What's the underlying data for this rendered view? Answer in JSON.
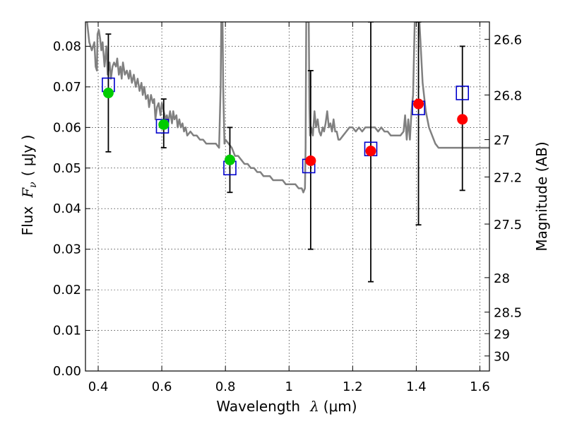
{
  "chart_data": {
    "type": "scatter",
    "xlabel": "Wavelength",
    "xlabel_symbol": "λ",
    "xlabel_unit": "(μm)",
    "ylabel": "Flux",
    "ylabel_symbol": "F",
    "ylabel_sub": "ν",
    "ylabel_unit": "( μJy )",
    "ylabel_right": "Magnitude (AB)",
    "xlim": [
      0.36,
      1.63
    ],
    "ylim": [
      0.0,
      0.086
    ],
    "grid": true,
    "x_ticks": [
      {
        "value": 0.4,
        "label": "0.4"
      },
      {
        "value": 0.6,
        "label": "0.6"
      },
      {
        "value": 0.8,
        "label": "0.8"
      },
      {
        "value": 1.0,
        "label": "1"
      },
      {
        "value": 1.2,
        "label": "1.2"
      },
      {
        "value": 1.4,
        "label": "1.4"
      },
      {
        "value": 1.6,
        "label": "1.6"
      }
    ],
    "y_ticks": [
      {
        "value": 0.0,
        "label": "0.00"
      },
      {
        "value": 0.01,
        "label": "0.01"
      },
      {
        "value": 0.02,
        "label": "0.02"
      },
      {
        "value": 0.03,
        "label": "0.03"
      },
      {
        "value": 0.04,
        "label": "0.04"
      },
      {
        "value": 0.05,
        "label": "0.05"
      },
      {
        "value": 0.06,
        "label": "0.06"
      },
      {
        "value": 0.07,
        "label": "0.07"
      },
      {
        "value": 0.08,
        "label": "0.08"
      }
    ],
    "right_ticks": [
      {
        "flux": 0.0817,
        "label": "26.6"
      },
      {
        "flux": 0.068,
        "label": "26.8"
      },
      {
        "flux": 0.057,
        "label": "27"
      },
      {
        "flux": 0.0478,
        "label": "27.2"
      },
      {
        "flux": 0.0362,
        "label": "27.5"
      },
      {
        "flux": 0.023,
        "label": "28"
      },
      {
        "flux": 0.0145,
        "label": "28.5"
      },
      {
        "flux": 0.0092,
        "label": "29"
      },
      {
        "flux": 0.0037,
        "label": "30"
      }
    ],
    "spectrum": {
      "color": "#808080",
      "points": [
        [
          0.365,
          0.086
        ],
        [
          0.372,
          0.081
        ],
        [
          0.38,
          0.079
        ],
        [
          0.388,
          0.081
        ],
        [
          0.392,
          0.075
        ],
        [
          0.396,
          0.074
        ],
        [
          0.398,
          0.083
        ],
        [
          0.402,
          0.084
        ],
        [
          0.406,
          0.082
        ],
        [
          0.41,
          0.079
        ],
        [
          0.414,
          0.081
        ],
        [
          0.42,
          0.075
        ],
        [
          0.426,
          0.08
        ],
        [
          0.43,
          0.073
        ],
        [
          0.436,
          0.076
        ],
        [
          0.44,
          0.072
        ],
        [
          0.445,
          0.075
        ],
        [
          0.45,
          0.076
        ],
        [
          0.456,
          0.075
        ],
        [
          0.46,
          0.077
        ],
        [
          0.465,
          0.073
        ],
        [
          0.47,
          0.075
        ],
        [
          0.474,
          0.072
        ],
        [
          0.478,
          0.076
        ],
        [
          0.484,
          0.073
        ],
        [
          0.49,
          0.074
        ],
        [
          0.496,
          0.072
        ],
        [
          0.5,
          0.074
        ],
        [
          0.506,
          0.071
        ],
        [
          0.512,
          0.073
        ],
        [
          0.518,
          0.07
        ],
        [
          0.524,
          0.072
        ],
        [
          0.53,
          0.069
        ],
        [
          0.536,
          0.071
        ],
        [
          0.54,
          0.068
        ],
        [
          0.545,
          0.07
        ],
        [
          0.55,
          0.067
        ],
        [
          0.556,
          0.068
        ],
        [
          0.56,
          0.065
        ],
        [
          0.566,
          0.068
        ],
        [
          0.572,
          0.066
        ],
        [
          0.576,
          0.067
        ],
        [
          0.58,
          0.062
        ],
        [
          0.585,
          0.065
        ],
        [
          0.59,
          0.066
        ],
        [
          0.596,
          0.063
        ],
        [
          0.6,
          0.066
        ],
        [
          0.606,
          0.064
        ],
        [
          0.612,
          0.062
        ],
        [
          0.616,
          0.063
        ],
        [
          0.62,
          0.061
        ],
        [
          0.626,
          0.064
        ],
        [
          0.632,
          0.061
        ],
        [
          0.636,
          0.064
        ],
        [
          0.64,
          0.062
        ],
        [
          0.646,
          0.063
        ],
        [
          0.65,
          0.06
        ],
        [
          0.655,
          0.062
        ],
        [
          0.66,
          0.06
        ],
        [
          0.665,
          0.061
        ],
        [
          0.67,
          0.059
        ],
        [
          0.675,
          0.06
        ],
        [
          0.68,
          0.058
        ],
        [
          0.69,
          0.059
        ],
        [
          0.7,
          0.058
        ],
        [
          0.71,
          0.058
        ],
        [
          0.72,
          0.057
        ],
        [
          0.73,
          0.057
        ],
        [
          0.74,
          0.056
        ],
        [
          0.75,
          0.056
        ],
        [
          0.76,
          0.056
        ],
        [
          0.77,
          0.056
        ],
        [
          0.78,
          0.055
        ],
        [
          0.785,
          0.07
        ],
        [
          0.787,
          0.086
        ],
        [
          0.791,
          0.086
        ],
        [
          0.793,
          0.07
        ],
        [
          0.797,
          0.056
        ],
        [
          0.8,
          0.057
        ],
        [
          0.81,
          0.056
        ],
        [
          0.82,
          0.055
        ],
        [
          0.83,
          0.053
        ],
        [
          0.84,
          0.053
        ],
        [
          0.85,
          0.052
        ],
        [
          0.86,
          0.051
        ],
        [
          0.87,
          0.051
        ],
        [
          0.88,
          0.05
        ],
        [
          0.89,
          0.05
        ],
        [
          0.9,
          0.049
        ],
        [
          0.91,
          0.049
        ],
        [
          0.92,
          0.048
        ],
        [
          0.93,
          0.048
        ],
        [
          0.94,
          0.048
        ],
        [
          0.95,
          0.047
        ],
        [
          0.96,
          0.047
        ],
        [
          0.97,
          0.047
        ],
        [
          0.98,
          0.047
        ],
        [
          0.99,
          0.046
        ],
        [
          1.0,
          0.046
        ],
        [
          1.01,
          0.046
        ],
        [
          1.02,
          0.046
        ],
        [
          1.03,
          0.045
        ],
        [
          1.04,
          0.045
        ],
        [
          1.045,
          0.044
        ],
        [
          1.05,
          0.045
        ],
        [
          1.052,
          0.055
        ],
        [
          1.054,
          0.086
        ],
        [
          1.062,
          0.086
        ],
        [
          1.064,
          0.065
        ],
        [
          1.066,
          0.058
        ],
        [
          1.07,
          0.06
        ],
        [
          1.075,
          0.058
        ],
        [
          1.08,
          0.064
        ],
        [
          1.085,
          0.06
        ],
        [
          1.09,
          0.062
        ],
        [
          1.095,
          0.059
        ],
        [
          1.1,
          0.058
        ],
        [
          1.106,
          0.06
        ],
        [
          1.11,
          0.059
        ],
        [
          1.115,
          0.061
        ],
        [
          1.12,
          0.064
        ],
        [
          1.125,
          0.06
        ],
        [
          1.13,
          0.061
        ],
        [
          1.135,
          0.059
        ],
        [
          1.14,
          0.062
        ],
        [
          1.145,
          0.059
        ],
        [
          1.15,
          0.059
        ],
        [
          1.155,
          0.057
        ],
        [
          1.16,
          0.057
        ],
        [
          1.17,
          0.058
        ],
        [
          1.18,
          0.059
        ],
        [
          1.19,
          0.06
        ],
        [
          1.2,
          0.06
        ],
        [
          1.21,
          0.059
        ],
        [
          1.22,
          0.06
        ],
        [
          1.23,
          0.059
        ],
        [
          1.24,
          0.06
        ],
        [
          1.25,
          0.06
        ],
        [
          1.26,
          0.06
        ],
        [
          1.27,
          0.06
        ],
        [
          1.28,
          0.059
        ],
        [
          1.29,
          0.06
        ],
        [
          1.3,
          0.059
        ],
        [
          1.31,
          0.059
        ],
        [
          1.32,
          0.058
        ],
        [
          1.33,
          0.058
        ],
        [
          1.34,
          0.058
        ],
        [
          1.35,
          0.058
        ],
        [
          1.36,
          0.059
        ],
        [
          1.365,
          0.063
        ],
        [
          1.37,
          0.057
        ],
        [
          1.375,
          0.062
        ],
        [
          1.38,
          0.057
        ],
        [
          1.385,
          0.064
        ],
        [
          1.39,
          0.068
        ],
        [
          1.395,
          0.086
        ],
        [
          1.41,
          0.086
        ],
        [
          1.42,
          0.071
        ],
        [
          1.43,
          0.064
        ],
        [
          1.44,
          0.06
        ],
        [
          1.45,
          0.058
        ],
        [
          1.46,
          0.056
        ],
        [
          1.47,
          0.055
        ],
        [
          1.48,
          0.055
        ],
        [
          1.49,
          0.055
        ],
        [
          1.5,
          0.055
        ],
        [
          1.51,
          0.055
        ],
        [
          1.52,
          0.055
        ],
        [
          1.53,
          0.055
        ],
        [
          1.54,
          0.055
        ],
        [
          1.55,
          0.055
        ],
        [
          1.56,
          0.055
        ],
        [
          1.57,
          0.055
        ],
        [
          1.58,
          0.055
        ],
        [
          1.59,
          0.055
        ],
        [
          1.6,
          0.055
        ],
        [
          1.61,
          0.055
        ],
        [
          1.62,
          0.055
        ],
        [
          1.63,
          0.055
        ]
      ]
    },
    "errorbars": [
      {
        "x": 0.432,
        "low": 0.054,
        "high": 0.083
      },
      {
        "x": 0.606,
        "low": 0.055,
        "high": 0.067
      },
      {
        "x": 0.814,
        "low": 0.044,
        "high": 0.06
      },
      {
        "x": 1.068,
        "low": 0.03,
        "high": 0.074
      },
      {
        "x": 1.257,
        "low": 0.022,
        "high": 0.086
      },
      {
        "x": 1.407,
        "low": 0.036,
        "high": 0.086
      },
      {
        "x": 1.545,
        "low": 0.0445,
        "high": 0.08
      }
    ],
    "model_points": {
      "color": "#0000cc",
      "points": [
        {
          "x": 0.432,
          "y": 0.0705
        },
        {
          "x": 0.602,
          "y": 0.0603
        },
        {
          "x": 0.814,
          "y": 0.05
        },
        {
          "x": 1.062,
          "y": 0.0505
        },
        {
          "x": 1.257,
          "y": 0.0547
        },
        {
          "x": 1.407,
          "y": 0.0648
        },
        {
          "x": 1.545,
          "y": 0.0685
        }
      ]
    },
    "optical_points": {
      "color": "#00cc00",
      "points": [
        {
          "x": 0.432,
          "y": 0.0685
        },
        {
          "x": 0.606,
          "y": 0.0607
        },
        {
          "x": 0.814,
          "y": 0.052
        }
      ]
    },
    "ir_points": {
      "color": "#ff0000",
      "points": [
        {
          "x": 1.068,
          "y": 0.0518
        },
        {
          "x": 1.257,
          "y": 0.0542
        },
        {
          "x": 1.407,
          "y": 0.0658
        },
        {
          "x": 1.545,
          "y": 0.062
        }
      ]
    }
  }
}
